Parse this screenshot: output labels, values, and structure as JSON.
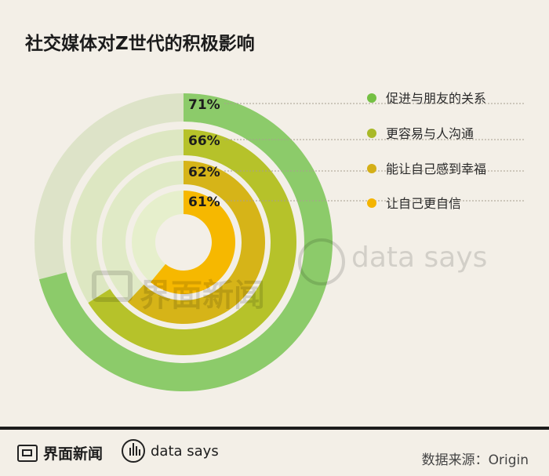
{
  "title": "社交媒体对Z世代的积极影响",
  "chart_data": {
    "type": "radial-bar",
    "series": [
      {
        "label": "促进与朋友的关系",
        "value": 71,
        "value_label": "71%",
        "color": "#8ccb6a",
        "track": "#dde3c8"
      },
      {
        "label": "更容易与人沟通",
        "value": 66,
        "value_label": "66%",
        "color": "#b6c22a",
        "track": "#dde7c2"
      },
      {
        "label": "能让自己感到幸福",
        "value": 62,
        "value_label": "62%",
        "color": "#d6b418",
        "track": "#e0eac6"
      },
      {
        "label": "让自己更自信",
        "value": 61,
        "value_label": "61%",
        "color": "#f6b800",
        "track": "#e6efcc"
      }
    ],
    "legend_dot_colors": [
      "#74c043",
      "#a9b928",
      "#d4af17",
      "#f4b400"
    ]
  },
  "watermark": {
    "brand": "界面新闻",
    "ds": "data says"
  },
  "footer": {
    "brand": "界面新闻",
    "ds": "data says",
    "source": "数据来源：Origin"
  }
}
